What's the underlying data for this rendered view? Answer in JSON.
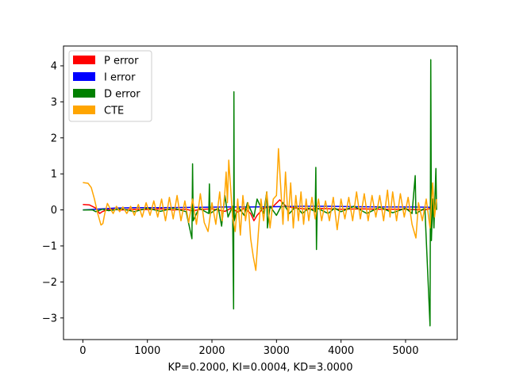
{
  "chart_data": {
    "type": "line",
    "title": "",
    "xlabel": "KP=0.2000, KI=0.0004, KD=3.0000",
    "ylabel": "",
    "xlim": [
      -300,
      5800
    ],
    "ylim": [
      -3.6,
      4.55
    ],
    "xticks": [
      0,
      1000,
      2000,
      3000,
      4000,
      5000
    ],
    "yticks": [
      -3,
      -2,
      -1,
      0,
      1,
      2,
      3,
      4
    ],
    "grid": false,
    "legend_position": "upper left",
    "series": [
      {
        "name": "P error",
        "color": "#ff0000",
        "points": [
          [
            0,
            0.15
          ],
          [
            100,
            0.14
          ],
          [
            200,
            0.05
          ],
          [
            260,
            -0.1
          ],
          [
            300,
            -0.05
          ],
          [
            400,
            0.02
          ],
          [
            600,
            0.0
          ],
          [
            800,
            0.02
          ],
          [
            1000,
            0.01
          ],
          [
            1200,
            0.03
          ],
          [
            1400,
            0.0
          ],
          [
            1600,
            0.02
          ],
          [
            1700,
            -0.03
          ],
          [
            1800,
            0.01
          ],
          [
            2000,
            0.03
          ],
          [
            2200,
            -0.04
          ],
          [
            2300,
            0.05
          ],
          [
            2400,
            -0.06
          ],
          [
            2500,
            0.05
          ],
          [
            2600,
            -0.1
          ],
          [
            2650,
            -0.3
          ],
          [
            2700,
            -0.15
          ],
          [
            2800,
            0.05
          ],
          [
            2950,
            0.1
          ],
          [
            3050,
            0.28
          ],
          [
            3150,
            0.1
          ],
          [
            3300,
            0.05
          ],
          [
            3500,
            0.02
          ],
          [
            3700,
            0.04
          ],
          [
            4000,
            0.02
          ],
          [
            4300,
            0.03
          ],
          [
            4600,
            0.02
          ],
          [
            5000,
            0.02
          ],
          [
            5300,
            0.0
          ],
          [
            5400,
            0.05
          ],
          [
            5480,
            0.03
          ]
        ]
      },
      {
        "name": "I error",
        "color": "#0000ff",
        "points": [
          [
            0,
            0.0
          ],
          [
            200,
            0.02
          ],
          [
            500,
            0.05
          ],
          [
            800,
            0.06
          ],
          [
            1200,
            0.06
          ],
          [
            1700,
            0.07
          ],
          [
            2200,
            0.08
          ],
          [
            2600,
            0.08
          ],
          [
            3000,
            0.09
          ],
          [
            3400,
            0.1
          ],
          [
            3800,
            0.1
          ],
          [
            4200,
            0.09
          ],
          [
            4700,
            0.08
          ],
          [
            5100,
            0.08
          ],
          [
            5480,
            0.07
          ]
        ]
      },
      {
        "name": "D error",
        "color": "#008000",
        "points": [
          [
            0,
            0.0
          ],
          [
            150,
            0.0
          ],
          [
            200,
            -0.05
          ],
          [
            300,
            0.02
          ],
          [
            400,
            -0.02
          ],
          [
            600,
            0.03
          ],
          [
            800,
            -0.05
          ],
          [
            1000,
            0.05
          ],
          [
            1200,
            -0.04
          ],
          [
            1400,
            0.05
          ],
          [
            1600,
            -0.05
          ],
          [
            1690,
            -0.8
          ],
          [
            1700,
            1.28
          ],
          [
            1710,
            -0.3
          ],
          [
            1800,
            0.05
          ],
          [
            1950,
            -0.1
          ],
          [
            1960,
            0.72
          ],
          [
            1970,
            -0.1
          ],
          [
            2100,
            0.05
          ],
          [
            2150,
            -0.45
          ],
          [
            2200,
            0.4
          ],
          [
            2250,
            -0.2
          ],
          [
            2320,
            0.1
          ],
          [
            2335,
            -2.75
          ],
          [
            2340,
            3.28
          ],
          [
            2345,
            -0.3
          ],
          [
            2400,
            0.1
          ],
          [
            2500,
            -0.15
          ],
          [
            2550,
            0.2
          ],
          [
            2650,
            -0.2
          ],
          [
            2700,
            0.3
          ],
          [
            2800,
            -0.1
          ],
          [
            2850,
            0.5
          ],
          [
            2860,
            -0.5
          ],
          [
            2900,
            0.1
          ],
          [
            3000,
            -0.15
          ],
          [
            3100,
            0.2
          ],
          [
            3200,
            -0.1
          ],
          [
            3300,
            0.1
          ],
          [
            3400,
            -0.1
          ],
          [
            3500,
            0.05
          ],
          [
            3600,
            -0.05
          ],
          [
            3610,
            1.18
          ],
          [
            3620,
            -1.1
          ],
          [
            3630,
            0.05
          ],
          [
            3800,
            -0.1
          ],
          [
            3900,
            0.05
          ],
          [
            4000,
            -0.05
          ],
          [
            4200,
            0.1
          ],
          [
            4400,
            -0.1
          ],
          [
            4600,
            0.08
          ],
          [
            4800,
            -0.08
          ],
          [
            5000,
            0.05
          ],
          [
            5100,
            -0.1
          ],
          [
            5150,
            0.95
          ],
          [
            5160,
            -0.1
          ],
          [
            5300,
            0.05
          ],
          [
            5380,
            -3.22
          ],
          [
            5390,
            4.17
          ],
          [
            5400,
            -0.85
          ],
          [
            5420,
            0.3
          ],
          [
            5440,
            -0.5
          ],
          [
            5470,
            1.15
          ],
          [
            5480,
            0.0
          ]
        ]
      },
      {
        "name": "CTE",
        "color": "#ffa500",
        "points": [
          [
            0,
            0.76
          ],
          [
            80,
            0.74
          ],
          [
            130,
            0.62
          ],
          [
            180,
            0.3
          ],
          [
            230,
            -0.1
          ],
          [
            280,
            -0.42
          ],
          [
            310,
            -0.38
          ],
          [
            340,
            -0.1
          ],
          [
            380,
            0.18
          ],
          [
            420,
            0.05
          ],
          [
            470,
            -0.1
          ],
          [
            520,
            0.1
          ],
          [
            570,
            -0.05
          ],
          [
            620,
            0.08
          ],
          [
            680,
            -0.1
          ],
          [
            740,
            0.1
          ],
          [
            800,
            -0.15
          ],
          [
            860,
            0.15
          ],
          [
            920,
            -0.2
          ],
          [
            980,
            0.2
          ],
          [
            1040,
            -0.15
          ],
          [
            1100,
            0.25
          ],
          [
            1160,
            -0.2
          ],
          [
            1220,
            0.3
          ],
          [
            1280,
            -0.3
          ],
          [
            1340,
            0.35
          ],
          [
            1400,
            -0.25
          ],
          [
            1460,
            0.4
          ],
          [
            1520,
            -0.3
          ],
          [
            1580,
            0.25
          ],
          [
            1640,
            -0.35
          ],
          [
            1700,
            0.3
          ],
          [
            1760,
            -0.4
          ],
          [
            1820,
            0.45
          ],
          [
            1880,
            -0.35
          ],
          [
            1940,
            -0.6
          ],
          [
            2000,
            0.2
          ],
          [
            2060,
            -0.4
          ],
          [
            2120,
            0.5
          ],
          [
            2160,
            -0.3
          ],
          [
            2200,
            0.5
          ],
          [
            2220,
            1.05
          ],
          [
            2240,
            0.2
          ],
          [
            2260,
            1.38
          ],
          [
            2290,
            0.6
          ],
          [
            2320,
            -0.2
          ],
          [
            2360,
            -0.6
          ],
          [
            2400,
            0.3
          ],
          [
            2440,
            -0.7
          ],
          [
            2480,
            0.4
          ],
          [
            2520,
            -0.3
          ],
          [
            2560,
            0.2
          ],
          [
            2600,
            -0.8
          ],
          [
            2640,
            -1.3
          ],
          [
            2680,
            -1.68
          ],
          [
            2720,
            -0.6
          ],
          [
            2760,
            0.3
          ],
          [
            2800,
            -0.3
          ],
          [
            2850,
            0.5
          ],
          [
            2900,
            -0.5
          ],
          [
            2950,
            0.3
          ],
          [
            3000,
            0.4
          ],
          [
            3030,
            1.7
          ],
          [
            3060,
            0.8
          ],
          [
            3100,
            -0.4
          ],
          [
            3140,
            1.05
          ],
          [
            3180,
            -0.3
          ],
          [
            3220,
            0.75
          ],
          [
            3260,
            -0.5
          ],
          [
            3300,
            0.4
          ],
          [
            3340,
            -0.3
          ],
          [
            3380,
            0.5
          ],
          [
            3420,
            -0.4
          ],
          [
            3460,
            0.3
          ],
          [
            3500,
            -0.3
          ],
          [
            3550,
            0.35
          ],
          [
            3600,
            -0.25
          ],
          [
            3650,
            0.3
          ],
          [
            3700,
            -0.3
          ],
          [
            3760,
            0.25
          ],
          [
            3820,
            -0.3
          ],
          [
            3880,
            0.35
          ],
          [
            3940,
            -0.55
          ],
          [
            4000,
            0.3
          ],
          [
            4060,
            -0.25
          ],
          [
            4120,
            0.35
          ],
          [
            4180,
            -0.3
          ],
          [
            4240,
            0.5
          ],
          [
            4300,
            -0.25
          ],
          [
            4360,
            0.45
          ],
          [
            4420,
            -0.3
          ],
          [
            4480,
            0.4
          ],
          [
            4540,
            -0.2
          ],
          [
            4600,
            0.4
          ],
          [
            4660,
            -0.3
          ],
          [
            4720,
            0.55
          ],
          [
            4760,
            -0.2
          ],
          [
            4800,
            0.5
          ],
          [
            4860,
            -0.3
          ],
          [
            4920,
            0.45
          ],
          [
            4980,
            -0.2
          ],
          [
            5040,
            0.35
          ],
          [
            5100,
            -0.4
          ],
          [
            5160,
            -0.78
          ],
          [
            5200,
            0.2
          ],
          [
            5260,
            -0.3
          ],
          [
            5320,
            0.3
          ],
          [
            5380,
            -0.5
          ],
          [
            5420,
            0.75
          ],
          [
            5450,
            -0.2
          ],
          [
            5480,
            0.3
          ]
        ]
      }
    ]
  }
}
